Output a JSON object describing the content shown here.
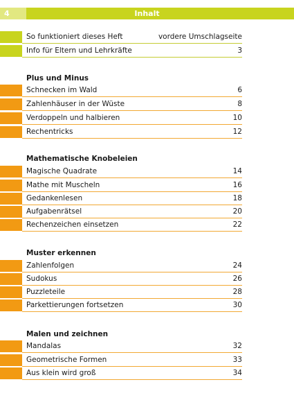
{
  "header": {
    "page_number": "4",
    "title": "Inhalt"
  },
  "intro": [
    {
      "label": "So funktioniert dieses Heft",
      "page": "vordere Umschlagseite"
    },
    {
      "label": "Info für Eltern und Lehrkräfte",
      "page": "3"
    }
  ],
  "sections": [
    {
      "title": "Plus und Minus",
      "items": [
        {
          "label": "Schnecken im Wald",
          "page": "6"
        },
        {
          "label": "Zahlenhäuser in der Wüste",
          "page": "8"
        },
        {
          "label": "Verdoppeln und halbieren",
          "page": "10"
        },
        {
          "label": "Rechentricks",
          "page": "12"
        }
      ]
    },
    {
      "title": "Mathematische Knobeleien",
      "items": [
        {
          "label": "Magische Quadrate",
          "page": "14"
        },
        {
          "label": "Mathe mit Muscheln",
          "page": "16"
        },
        {
          "label": "Gedankenlesen",
          "page": "18"
        },
        {
          "label": "Aufgabenrätsel",
          "page": "20"
        },
        {
          "label": "Rechenzeichen einsetzen",
          "page": "22"
        }
      ]
    },
    {
      "title": "Muster erkennen",
      "items": [
        {
          "label": "Zahlenfolgen",
          "page": "24"
        },
        {
          "label": "Sudokus",
          "page": "26"
        },
        {
          "label": "Puzzleteile",
          "page": "28"
        },
        {
          "label": "Parkettierungen fortsetzen",
          "page": "30"
        }
      ]
    },
    {
      "title": "Malen und zeichnen",
      "items": [
        {
          "label": "Mandalas",
          "page": "32"
        },
        {
          "label": "Geometrische Formen",
          "page": "33"
        },
        {
          "label": "Aus klein wird groß",
          "page": "34"
        }
      ]
    }
  ],
  "colors": {
    "green": "#c8d41e",
    "light_green": "#e2e881",
    "orange": "#f29a13"
  }
}
